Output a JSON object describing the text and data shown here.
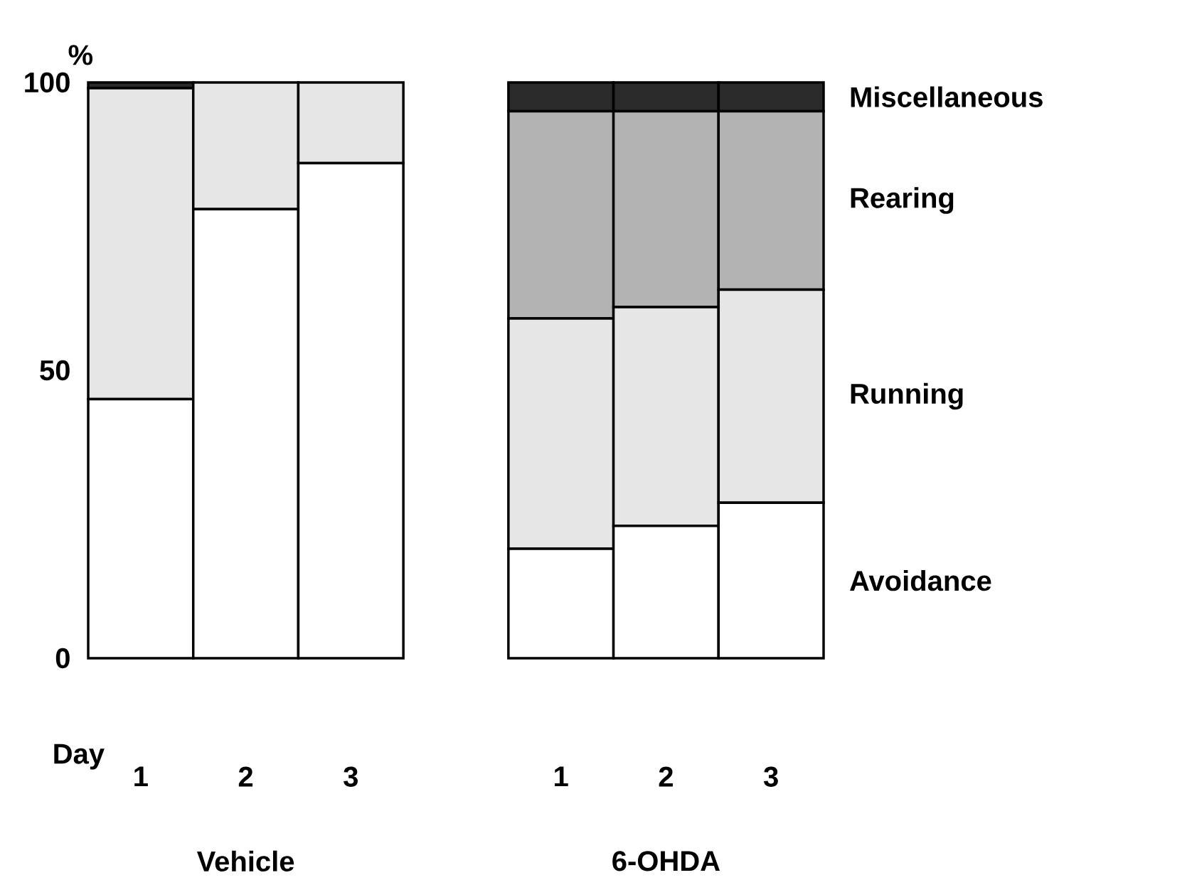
{
  "chart_data": {
    "type": "bar",
    "stacked": true,
    "xlabel": "Day",
    "ylabel": "%",
    "categories": [
      "1",
      "2",
      "3",
      null,
      "1",
      "2",
      "3"
    ],
    "series": [
      {
        "name": "Avoidance",
        "color": "#ffffff",
        "values": [
          45,
          78,
          86,
          null,
          19,
          23,
          27
        ]
      },
      {
        "name": "Running",
        "color": "#e6e6e6",
        "values": [
          54,
          22,
          14,
          null,
          40,
          38,
          37
        ]
      },
      {
        "name": "Rearing",
        "color": "#b3b3b3",
        "values": [
          0,
          0,
          0,
          null,
          36,
          34,
          31
        ]
      },
      {
        "name": "Miscellaneous",
        "color": "#2a2a2a",
        "values": [
          1,
          0,
          0,
          null,
          5,
          5,
          5
        ]
      }
    ],
    "legend": "right",
    "ylim": [
      0,
      100
    ],
    "yticks": [
      0,
      50,
      100
    ],
    "annotations": [
      "Vehicle",
      "6-OHDA"
    ]
  }
}
